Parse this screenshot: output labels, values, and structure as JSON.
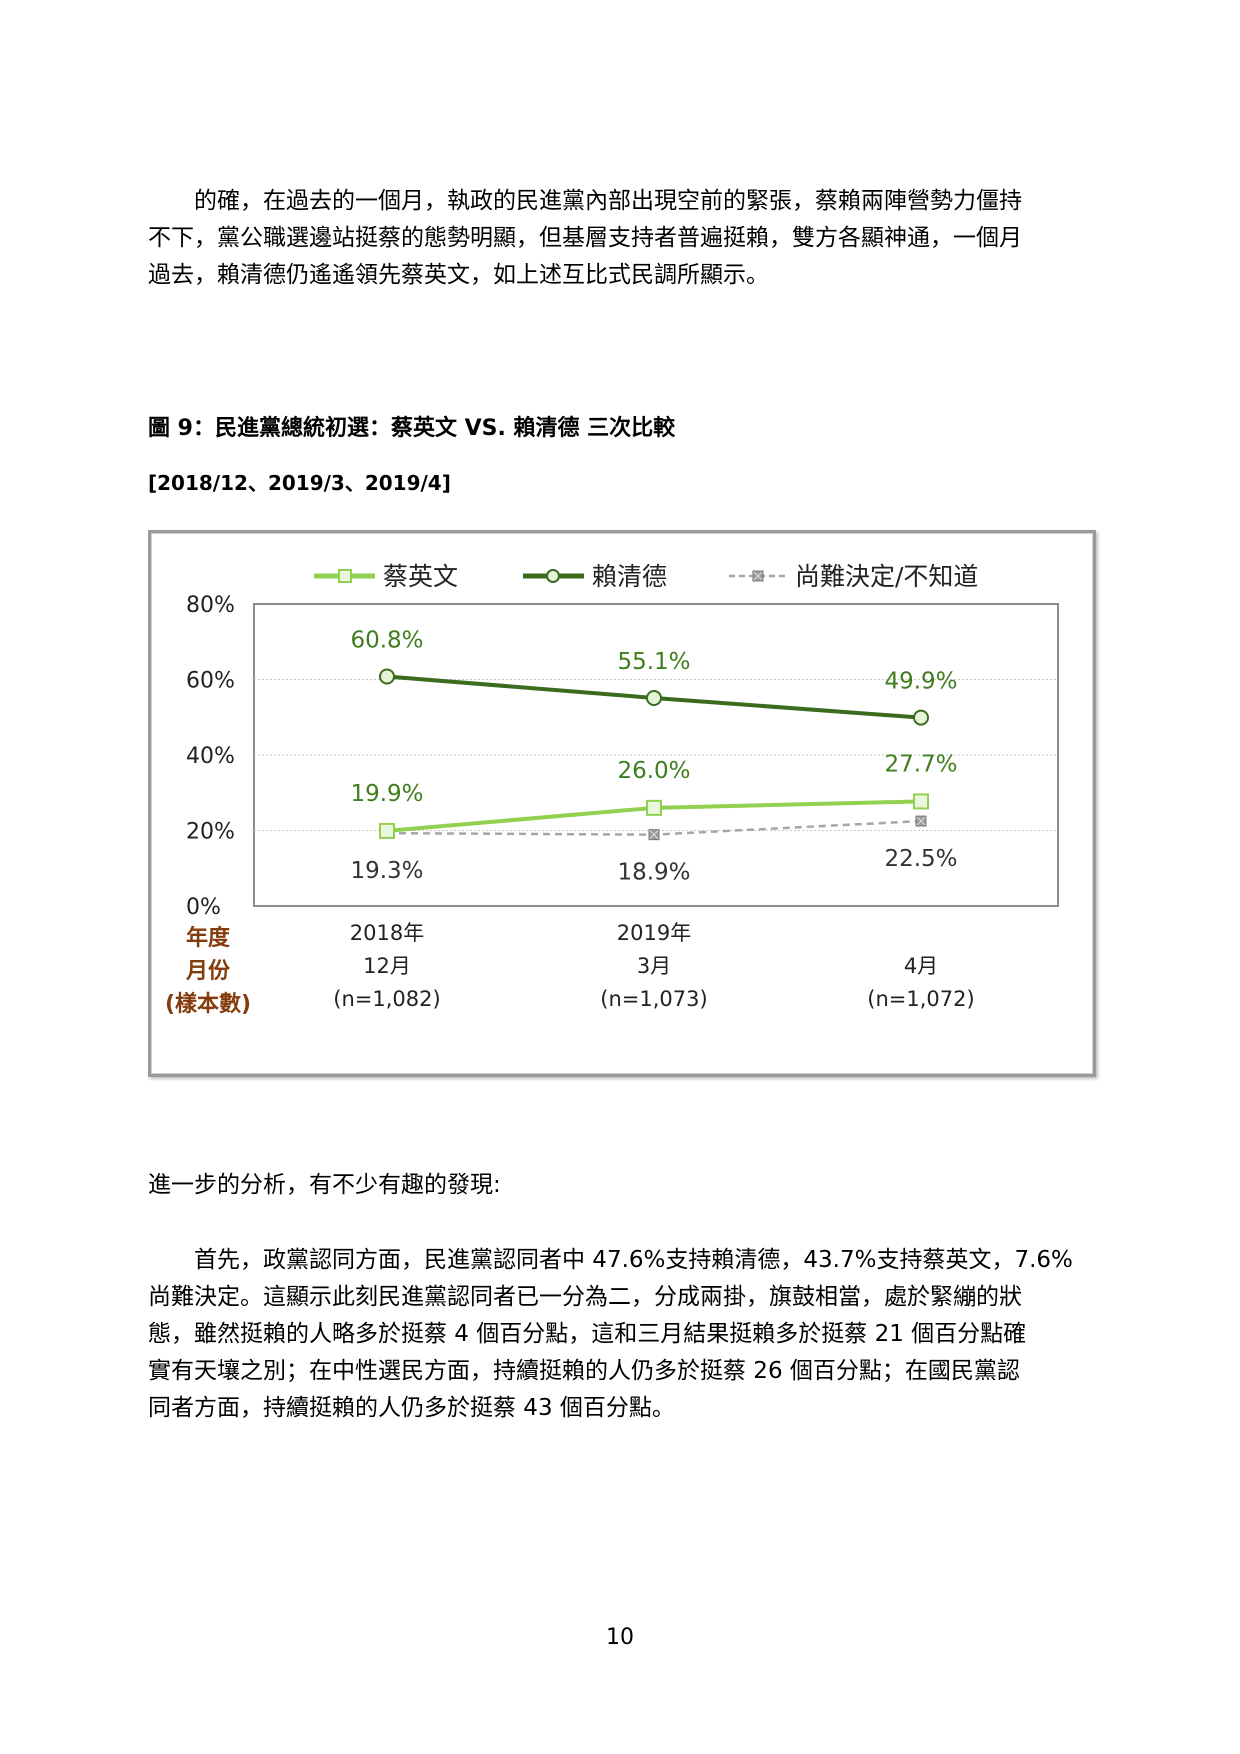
{
  "intro_lines": [
    "　　的確，在過去的一個月，執政的民進黨內部出現空前的緊張，蔡賴兩陣營勢力僵持",
    "不下，黨公職選邊站挺蔡的態勢明顯，但基層支持者普遍挺賴，雙方各顯神通，一個月",
    "過去，賴清德仍遙遙領先蔡英文，如上述互比式民調所顯示。"
  ],
  "figure": {
    "title": "圖 9：民進黨總統初選：蔡英文 VS.  賴清德  三次比較",
    "subtitle": "[2018/12、2019/3、2019/4]"
  },
  "chart_data": {
    "type": "line",
    "ylim": [
      0,
      80
    ],
    "y_ticks": [
      "0%",
      "20%",
      "40%",
      "60%",
      "80%"
    ],
    "grid": true,
    "legend_position": "top",
    "row_header": [
      "年度",
      "月份",
      "(樣本數)"
    ],
    "x_labels": [
      [
        "2018年",
        "12月",
        "(n=1,082)"
      ],
      [
        "2019年",
        "3月",
        "(n=1,073)"
      ],
      [
        "",
        "4月",
        "(n=1,072)"
      ]
    ],
    "series": [
      {
        "name": "蔡英文",
        "values": [
          19.9,
          26.0,
          27.7
        ],
        "labels": [
          "19.9%",
          "26.0%",
          "27.7%"
        ],
        "color": "#92d050",
        "marker": "square",
        "dashed": false
      },
      {
        "name": "賴清德",
        "values": [
          60.8,
          55.1,
          49.9
        ],
        "labels": [
          "60.8%",
          "55.1%",
          "49.9%"
        ],
        "color": "#3a6b1f",
        "marker": "circle",
        "dashed": false
      },
      {
        "name": "尚難決定/不知道",
        "values": [
          19.3,
          18.9,
          22.5
        ],
        "labels": [
          "19.3%",
          "18.9%",
          "22.5%"
        ],
        "color": "#a6a6a6",
        "marker": "x-square",
        "dashed": true
      }
    ],
    "label_color": "#3f7d1e",
    "neutral_label_color": "#333333",
    "row_header_color": "#843c0c"
  },
  "further_text": "進一步的分析，有不少有趣的發現:",
  "analysis_lines": [
    "　　首先，政黨認同方面，民進黨認同者中 47.6%支持賴清德，43.7%支持蔡英文，7.6%",
    "尚難決定。這顯示此刻民進黨認同者已一分為二，分成兩掛，旗鼓相當，處於緊繃的狀",
    "態，雖然挺賴的人略多於挺蔡 4 個百分點，這和三月結果挺賴多於挺蔡 21 個百分點確",
    "實有天壤之別；在中性選民方面，持續挺賴的人仍多於挺蔡 26 個百分點；在國民黨認",
    "同者方面，持續挺賴的人仍多於挺蔡 43 個百分點。"
  ],
  "page_number": "10"
}
